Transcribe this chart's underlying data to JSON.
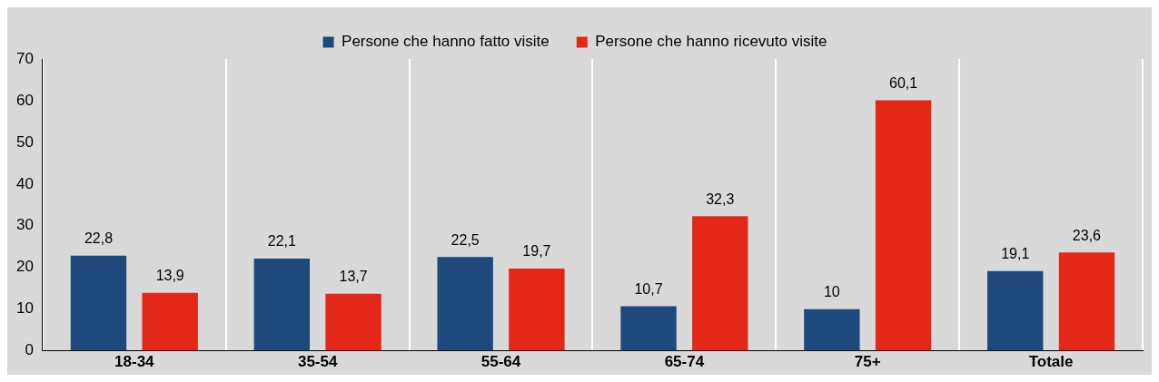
{
  "chart_data": {
    "type": "bar",
    "categories": [
      "18-34",
      "35-54",
      "55-64",
      "65-74",
      "75+",
      "Totale"
    ],
    "series": [
      {
        "name": "Persone che hanno fatto visite",
        "color": "#1f497d",
        "values": [
          22.8,
          22.1,
          22.5,
          10.7,
          10,
          19.1
        ],
        "value_labels": [
          "22,8",
          "22,1",
          "22,5",
          "10,7",
          "10",
          "19,1"
        ]
      },
      {
        "name": "Persone che hanno ricevuto visite",
        "color": "#e3281a",
        "values": [
          13.9,
          13.7,
          19.7,
          32.3,
          60.1,
          23.6
        ],
        "value_labels": [
          "13,9",
          "13,7",
          "19,7",
          "32,3",
          "60,1",
          "23,6"
        ]
      }
    ],
    "ylim": [
      0,
      70
    ],
    "yticks": [
      0,
      10,
      20,
      30,
      40,
      50,
      60,
      70
    ],
    "grid": "x",
    "legend": "top"
  }
}
